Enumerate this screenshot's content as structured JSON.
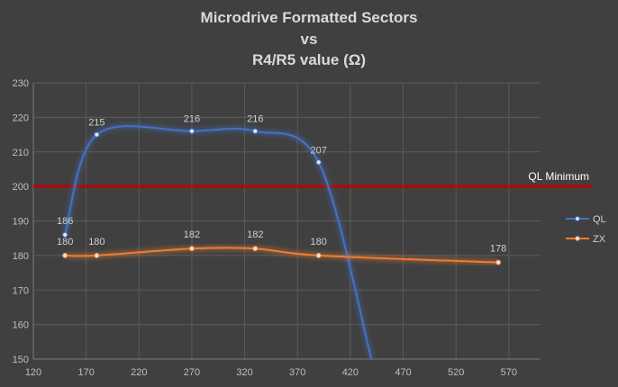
{
  "chart_data": {
    "type": "line",
    "title": [
      "Microdrive Formatted Sectors",
      "vs",
      "R4/R5 value (Ω)"
    ],
    "xlim": [
      120,
      600
    ],
    "ylim": [
      150,
      230
    ],
    "xticks": [
      120,
      170,
      220,
      270,
      320,
      370,
      420,
      470,
      520,
      570
    ],
    "yticks": [
      150,
      160,
      170,
      180,
      190,
      200,
      210,
      220,
      230
    ],
    "grid": true,
    "legend": "right",
    "series": [
      {
        "name": "QL",
        "color": "#4472c4",
        "points": [
          [
            150,
            186
          ],
          [
            180,
            215
          ],
          [
            270,
            216
          ],
          [
            330,
            216
          ],
          [
            390,
            207
          ]
        ],
        "labels": [
          "186",
          "215",
          "216",
          "216",
          "207"
        ],
        "trend_end": [
          440,
          150
        ]
      },
      {
        "name": "ZX",
        "color": "#ed7d31",
        "points": [
          [
            150,
            180
          ],
          [
            180,
            180
          ],
          [
            270,
            182
          ],
          [
            330,
            182
          ],
          [
            390,
            180
          ],
          [
            560,
            178
          ]
        ],
        "labels": [
          "180",
          "180",
          "182",
          "182",
          "180",
          "178"
        ]
      }
    ],
    "threshold": {
      "value": 200,
      "label": "QL Minimum",
      "color": "#c00000"
    }
  }
}
